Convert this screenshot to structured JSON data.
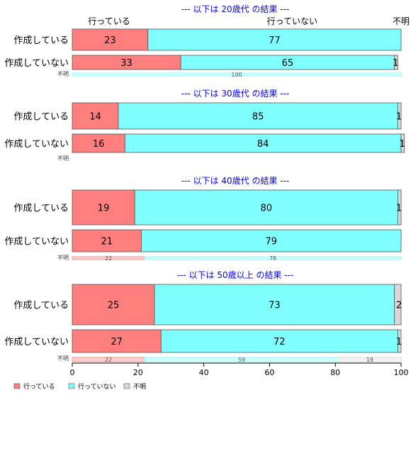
{
  "chart_data": {
    "type": "bar",
    "orientation": "horizontal",
    "stacked": "percent",
    "xlim": [
      0,
      100
    ],
    "x_ticks": [
      "0",
      "20",
      "40",
      "60",
      "80",
      "100"
    ],
    "legend_placement": "bottom-left",
    "series": [
      {
        "name": "行っている",
        "color": "#ff7f7f"
      },
      {
        "name": "行っていない",
        "color": "#7fffff"
      },
      {
        "name": "不明",
        "color": "#d9d9d9"
      }
    ],
    "top_series_labels": [
      "行っている",
      "行っていない",
      "不明"
    ],
    "panels": [
      {
        "title": "--- 以下は 20歳代 の結果 ---",
        "rows": [
          {
            "label": "作成している",
            "values": [
              23,
              77,
              0
            ],
            "labels": [
              "23",
              "77",
              ""
            ]
          },
          {
            "label": "作成していない",
            "values": [
              33,
              65,
              1
            ],
            "labels": [
              "33",
              "65",
              "1"
            ]
          }
        ],
        "unknown": {
          "label": "不明",
          "values": [
            0,
            100,
            0
          ],
          "labels": [
            "",
            "100",
            ""
          ]
        }
      },
      {
        "title": "--- 以下は 30歳代 の結果 ---",
        "rows": [
          {
            "label": "作成している",
            "values": [
              14,
              85,
              1
            ],
            "labels": [
              "14",
              "85",
              "1"
            ]
          },
          {
            "label": "作成していない",
            "values": [
              16,
              84,
              1
            ],
            "labels": [
              "16",
              "84",
              "1"
            ]
          }
        ],
        "unknown": {
          "label": "不明",
          "values": [
            0,
            0,
            0
          ],
          "labels": [
            "",
            "",
            ""
          ]
        }
      },
      {
        "title": "--- 以下は 40歳代 の結果 ---",
        "rows": [
          {
            "label": "作成している",
            "values": [
              19,
              80,
              1
            ],
            "labels": [
              "19",
              "80",
              "1"
            ]
          },
          {
            "label": "作成していない",
            "values": [
              21,
              79,
              0
            ],
            "labels": [
              "21",
              "79",
              ""
            ]
          }
        ],
        "unknown": {
          "label": "不明",
          "values": [
            22,
            78,
            0
          ],
          "labels": [
            "22",
            "78",
            ""
          ]
        }
      },
      {
        "title": "--- 以下は 50歳以上 の結果 ---",
        "rows": [
          {
            "label": "作成している",
            "values": [
              25,
              73,
              2
            ],
            "labels": [
              "25",
              "73",
              "2"
            ]
          },
          {
            "label": "作成していない",
            "values": [
              27,
              72,
              1
            ],
            "labels": [
              "27",
              "72",
              "1"
            ]
          }
        ],
        "unknown": {
          "label": "不明",
          "values": [
            22,
            59,
            19
          ],
          "labels": [
            "22",
            "59",
            "19"
          ]
        }
      }
    ]
  }
}
